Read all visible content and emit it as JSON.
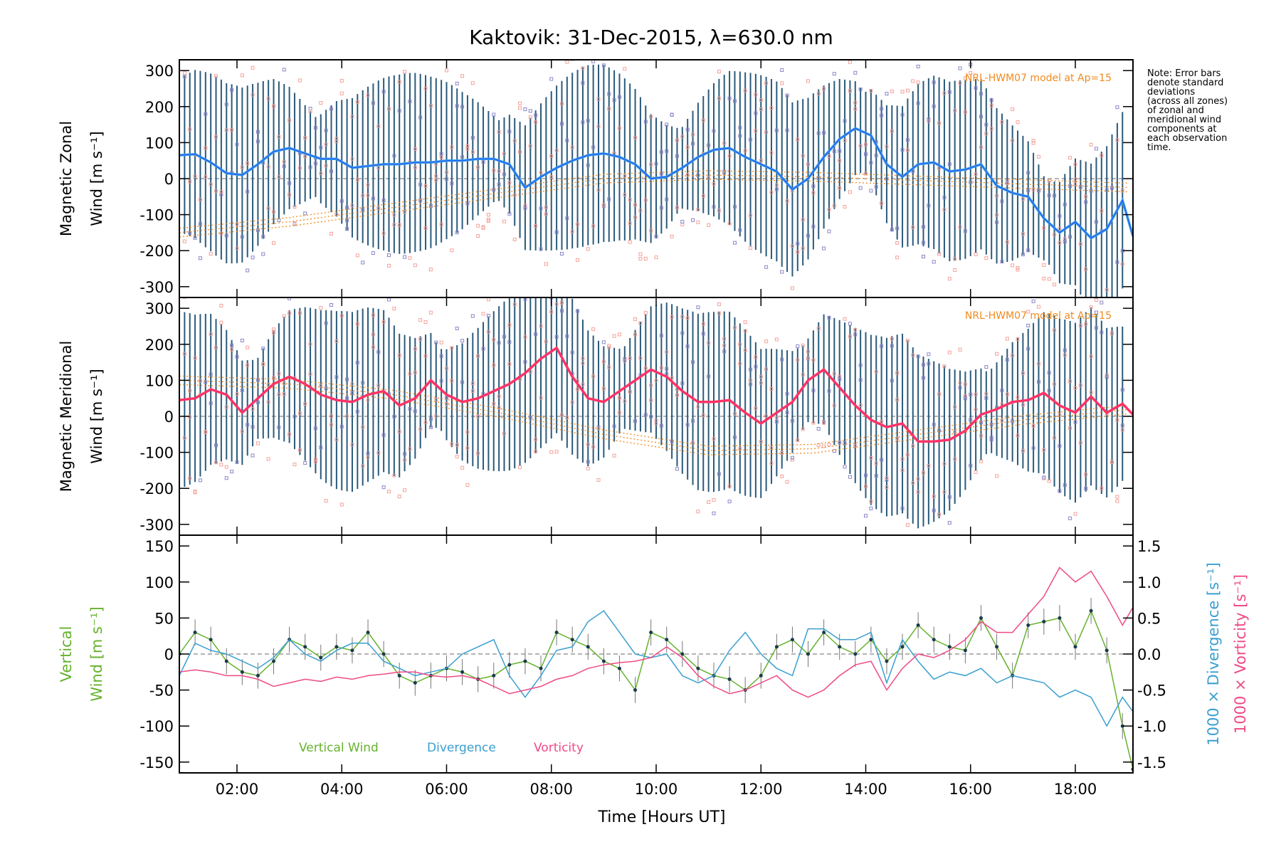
{
  "title": "Kaktovik: 31-Dec-2015, λ=630.0 nm",
  "note_lines": [
    "Note: Error bars",
    "denote standard",
    "deviations",
    "(across all zones)",
    "of zonal and",
    "meridional wind",
    "components at",
    "each observation",
    "time."
  ],
  "xlabel": "Time [Hours UT]",
  "colors": {
    "zonal": "#1a3cff",
    "zonal_light": "#3aa0e8",
    "meridional": "#ff3366",
    "model": "#f08a1e",
    "errorbar": "#2a5a7a",
    "vertical": "#66b22e",
    "divergence": "#3a9fd0",
    "vorticity": "#ef4a86",
    "scatter_salmon": "#f4a29a",
    "scatter_purple": "#8c86c8"
  },
  "chart_data": [
    {
      "type": "line",
      "panel": "zonal",
      "ylabel_line1": "Magnetic Zonal",
      "ylabel_line2": "Wind [m s⁻¹]",
      "model_label": "NRL-HWM07 model at Ap=15",
      "xlim": [
        0.9,
        19.1
      ],
      "ylim": [
        -330,
        330
      ],
      "x_ticks": [
        "02:00",
        "04:00",
        "06:00",
        "08:00",
        "10:00",
        "12:00",
        "14:00",
        "16:00",
        "18:00"
      ],
      "y_ticks": [
        -300,
        -200,
        -100,
        0,
        100,
        200,
        300
      ],
      "series": [
        {
          "x": [
            0.9,
            1.2,
            1.5,
            1.8,
            2.1,
            2.4,
            2.7,
            3.0,
            3.3,
            3.6,
            3.9,
            4.2,
            4.5,
            4.8,
            5.1,
            5.4,
            5.7,
            6.0,
            6.3,
            6.6,
            6.9,
            7.2,
            7.5,
            7.8,
            8.1,
            8.4,
            8.7,
            9.0,
            9.3,
            9.6,
            9.9,
            10.2,
            10.5,
            10.8,
            11.1,
            11.4,
            11.7,
            12.0,
            12.3,
            12.6,
            12.9,
            13.2,
            13.5,
            13.8,
            14.1,
            14.4,
            14.7,
            15.0,
            15.3,
            15.6,
            15.9,
            16.2,
            16.5,
            16.8,
            17.1,
            17.4,
            17.7,
            18.0,
            18.3,
            18.6,
            18.9,
            19.1
          ],
          "values": [
            65,
            68,
            45,
            15,
            10,
            40,
            75,
            85,
            70,
            55,
            55,
            30,
            35,
            40,
            40,
            45,
            45,
            50,
            50,
            55,
            55,
            40,
            -25,
            5,
            30,
            50,
            65,
            70,
            60,
            40,
            0,
            5,
            30,
            60,
            80,
            85,
            60,
            40,
            20,
            -30,
            0,
            60,
            110,
            140,
            120,
            40,
            5,
            40,
            45,
            20,
            25,
            40,
            -20,
            -40,
            -50,
            -110,
            -150,
            -120,
            -165,
            -140,
            -60,
            -160
          ]
        }
      ],
      "model_x": [
        0.9,
        3,
        5,
        7,
        9,
        11,
        13,
        15,
        17,
        19.1
      ],
      "model_values": [
        -150,
        -120,
        -80,
        -40,
        0,
        10,
        5,
        -5,
        -15,
        -25
      ]
    },
    {
      "type": "line",
      "panel": "meridional",
      "ylabel_line1": "Magnetic Meridional",
      "ylabel_line2": "Wind [m s⁻¹]",
      "model_label": "NRL-HWM07 model at Ap=15",
      "xlim": [
        0.9,
        19.1
      ],
      "ylim": [
        -330,
        330
      ],
      "y_ticks": [
        -300,
        -200,
        -100,
        0,
        100,
        200,
        300
      ],
      "series": [
        {
          "x": [
            0.9,
            1.2,
            1.5,
            1.8,
            2.1,
            2.4,
            2.7,
            3.0,
            3.3,
            3.6,
            3.9,
            4.2,
            4.5,
            4.8,
            5.1,
            5.4,
            5.7,
            6.0,
            6.3,
            6.6,
            6.9,
            7.2,
            7.5,
            7.8,
            8.1,
            8.4,
            8.7,
            9.0,
            9.3,
            9.6,
            9.9,
            10.2,
            10.5,
            10.8,
            11.1,
            11.4,
            11.7,
            12.0,
            12.3,
            12.6,
            12.9,
            13.2,
            13.5,
            13.8,
            14.1,
            14.4,
            14.7,
            15.0,
            15.3,
            15.6,
            15.9,
            16.2,
            16.5,
            16.8,
            17.1,
            17.4,
            17.7,
            18.0,
            18.3,
            18.6,
            18.9,
            19.1
          ],
          "values": [
            45,
            50,
            75,
            60,
            10,
            50,
            90,
            110,
            90,
            60,
            45,
            40,
            60,
            70,
            30,
            50,
            100,
            60,
            40,
            50,
            70,
            90,
            120,
            160,
            190,
            110,
            50,
            40,
            70,
            100,
            130,
            110,
            70,
            40,
            40,
            45,
            10,
            -20,
            10,
            40,
            100,
            130,
            80,
            30,
            -10,
            -30,
            -20,
            -70,
            -70,
            -65,
            -40,
            5,
            20,
            40,
            45,
            65,
            30,
            10,
            55,
            10,
            35,
            5
          ]
        }
      ],
      "model_x": [
        0.9,
        3,
        5,
        7,
        9,
        11,
        13,
        15,
        17,
        19.1
      ],
      "model_values": [
        100,
        90,
        60,
        10,
        -50,
        -95,
        -90,
        -50,
        -10,
        20
      ]
    },
    {
      "type": "line",
      "panel": "vertical",
      "ylabel_left_line1": "Vertical",
      "ylabel_left_line2": "Wind [m s⁻¹]",
      "ylabel_right1": "1000 × Divergence [s⁻¹]",
      "ylabel_right2": "1000 × Vorticity [s⁻¹]",
      "xlim": [
        0.9,
        19.1
      ],
      "ylim": [
        -165,
        165
      ],
      "y2lim": [
        -1.65,
        1.65
      ],
      "y_ticks": [
        -150,
        -100,
        -50,
        0,
        50,
        100,
        150
      ],
      "y2_ticks": [
        "-1.5",
        "-1.0",
        "-0.5",
        "0.0",
        "0.5",
        "1.0",
        "1.5"
      ],
      "legend": [
        "Vertical Wind",
        "Divergence",
        "Vorticity"
      ],
      "series": [
        {
          "name": "Vertical Wind",
          "axis": "left",
          "x": [
            0.9,
            1.2,
            1.5,
            1.8,
            2.1,
            2.4,
            2.7,
            3.0,
            3.3,
            3.6,
            3.9,
            4.2,
            4.5,
            4.8,
            5.1,
            5.4,
            5.7,
            6.0,
            6.3,
            6.6,
            6.9,
            7.2,
            7.5,
            7.8,
            8.1,
            8.4,
            8.7,
            9.0,
            9.3,
            9.6,
            9.9,
            10.2,
            10.5,
            10.8,
            11.1,
            11.4,
            11.7,
            12.0,
            12.3,
            12.6,
            12.9,
            13.2,
            13.5,
            13.8,
            14.1,
            14.4,
            14.7,
            15.0,
            15.3,
            15.6,
            15.9,
            16.2,
            16.5,
            16.8,
            17.1,
            17.4,
            17.7,
            18.0,
            18.3,
            18.6,
            18.9,
            19.1
          ],
          "values": [
            0,
            30,
            20,
            -10,
            -25,
            -30,
            -10,
            20,
            10,
            -5,
            10,
            5,
            30,
            0,
            -30,
            -40,
            -30,
            -20,
            -25,
            -35,
            -30,
            -15,
            -10,
            -20,
            30,
            20,
            10,
            -10,
            -20,
            -50,
            30,
            20,
            0,
            -20,
            -30,
            -35,
            -50,
            -30,
            10,
            20,
            0,
            30,
            10,
            0,
            20,
            -10,
            10,
            40,
            20,
            10,
            5,
            50,
            10,
            -30,
            40,
            45,
            50,
            10,
            60,
            5,
            -100,
            -160
          ]
        },
        {
          "name": "Divergence",
          "axis": "right",
          "x": [
            0.9,
            1.2,
            1.5,
            1.8,
            2.1,
            2.4,
            2.7,
            3.0,
            3.3,
            3.6,
            3.9,
            4.2,
            4.5,
            4.8,
            5.1,
            5.4,
            5.7,
            6.0,
            6.3,
            6.6,
            6.9,
            7.2,
            7.5,
            7.8,
            8.1,
            8.4,
            8.7,
            9.0,
            9.3,
            9.6,
            9.9,
            10.2,
            10.5,
            10.8,
            11.1,
            11.4,
            11.7,
            12.0,
            12.3,
            12.6,
            12.9,
            13.2,
            13.5,
            13.8,
            14.1,
            14.4,
            14.7,
            15.0,
            15.3,
            15.6,
            15.9,
            16.2,
            16.5,
            16.8,
            17.1,
            17.4,
            17.7,
            18.0,
            18.3,
            18.6,
            18.9,
            19.1
          ],
          "values": [
            -0.3,
            0.15,
            0.05,
            0.0,
            -0.1,
            -0.2,
            -0.05,
            0.2,
            0.0,
            -0.1,
            0.05,
            0.15,
            0.15,
            -0.1,
            -0.2,
            -0.3,
            -0.25,
            -0.2,
            0.0,
            0.1,
            0.2,
            -0.3,
            -0.6,
            -0.3,
            0.05,
            0.1,
            0.45,
            0.6,
            0.3,
            0.0,
            -0.05,
            0.0,
            -0.3,
            -0.4,
            -0.3,
            0.05,
            0.3,
            0.0,
            -0.2,
            -0.3,
            0.35,
            0.35,
            0.2,
            0.2,
            0.3,
            -0.4,
            0.2,
            -0.1,
            -0.35,
            -0.25,
            -0.3,
            -0.2,
            -0.4,
            -0.3,
            -0.35,
            -0.4,
            -0.6,
            -0.5,
            -0.6,
            -1.0,
            -0.6,
            -0.8
          ]
        },
        {
          "name": "Vorticity",
          "axis": "right",
          "x": [
            0.9,
            1.2,
            1.5,
            1.8,
            2.1,
            2.4,
            2.7,
            3.0,
            3.3,
            3.6,
            3.9,
            4.2,
            4.5,
            4.8,
            5.1,
            5.4,
            5.7,
            6.0,
            6.3,
            6.6,
            6.9,
            7.2,
            7.5,
            7.8,
            8.1,
            8.4,
            8.7,
            9.0,
            9.3,
            9.6,
            9.9,
            10.2,
            10.5,
            10.8,
            11.1,
            11.4,
            11.7,
            12.0,
            12.3,
            12.6,
            12.9,
            13.2,
            13.5,
            13.8,
            14.1,
            14.4,
            14.7,
            15.0,
            15.3,
            15.6,
            15.9,
            16.2,
            16.5,
            16.8,
            17.1,
            17.4,
            17.7,
            18.0,
            18.3,
            18.6,
            18.9,
            19.1
          ],
          "values": [
            -0.25,
            -0.22,
            -0.25,
            -0.3,
            -0.3,
            -0.35,
            -0.45,
            -0.4,
            -0.35,
            -0.38,
            -0.32,
            -0.35,
            -0.3,
            -0.28,
            -0.25,
            -0.25,
            -0.3,
            -0.32,
            -0.3,
            -0.35,
            -0.45,
            -0.55,
            -0.5,
            -0.45,
            -0.35,
            -0.3,
            -0.2,
            -0.15,
            -0.12,
            -0.1,
            -0.05,
            0.1,
            -0.05,
            -0.3,
            -0.45,
            -0.55,
            -0.5,
            -0.4,
            -0.3,
            -0.5,
            -0.6,
            -0.5,
            -0.3,
            -0.15,
            -0.1,
            -0.5,
            -0.2,
            0.0,
            -0.05,
            0.05,
            0.2,
            0.45,
            0.3,
            0.3,
            0.55,
            0.8,
            1.2,
            1.0,
            1.15,
            0.8,
            0.4,
            0.65
          ]
        }
      ]
    }
  ]
}
